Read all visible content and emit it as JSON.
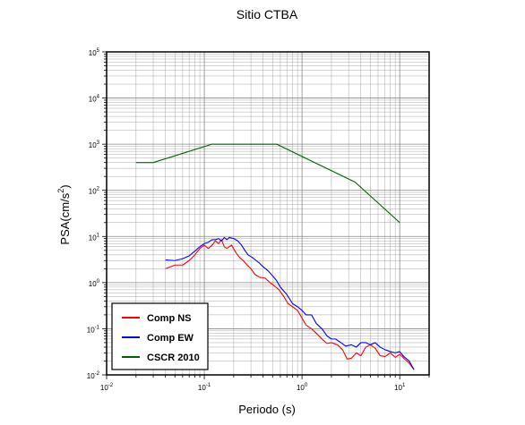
{
  "chart_data": {
    "type": "line",
    "title": "Sitio CTBA",
    "xlabel": "Periodo (s)",
    "ylabel_base": "PSA(cm/s",
    "ylabel_exp": "2",
    "ylabel_close": ")",
    "x_scale": "log",
    "y_scale": "log",
    "xlim": [
      0.01,
      20
    ],
    "ylim": [
      0.01,
      100000
    ],
    "grid": true,
    "legend_position": "bottom-left",
    "x_ticks": [
      {
        "base": "10",
        "exp": "-2",
        "value": 0.01
      },
      {
        "base": "10",
        "exp": "-1",
        "value": 0.1
      },
      {
        "base": "10",
        "exp": "0",
        "value": 1
      },
      {
        "base": "10",
        "exp": "1",
        "value": 10
      }
    ],
    "y_ticks": [
      {
        "base": "10",
        "exp": "-2",
        "value": 0.01
      },
      {
        "base": "10",
        "exp": "-1",
        "value": 0.1
      },
      {
        "base": "10",
        "exp": "0",
        "value": 1
      },
      {
        "base": "10",
        "exp": "1",
        "value": 10
      },
      {
        "base": "10",
        "exp": "2",
        "value": 100
      },
      {
        "base": "10",
        "exp": "3",
        "value": 1000
      },
      {
        "base": "10",
        "exp": "4",
        "value": 10000
      },
      {
        "base": "10",
        "exp": "5",
        "value": 100000
      }
    ],
    "series": [
      {
        "name": "Comp NS",
        "color": "#ff0000",
        "points": [
          [
            0.04,
            2.0
          ],
          [
            0.05,
            2.4
          ],
          [
            0.06,
            2.4
          ],
          [
            0.07,
            3.0
          ],
          [
            0.08,
            4.0
          ],
          [
            0.09,
            5.5
          ],
          [
            0.1,
            6.5
          ],
          [
            0.11,
            5.5
          ],
          [
            0.12,
            6.5
          ],
          [
            0.13,
            8.0
          ],
          [
            0.14,
            7.0
          ],
          [
            0.15,
            8.5
          ],
          [
            0.16,
            6.0
          ],
          [
            0.17,
            5.5
          ],
          [
            0.19,
            6.5
          ],
          [
            0.21,
            4.5
          ],
          [
            0.23,
            3.5
          ],
          [
            0.25,
            3.0
          ],
          [
            0.27,
            2.5
          ],
          [
            0.3,
            2.0
          ],
          [
            0.33,
            1.5
          ],
          [
            0.37,
            1.3
          ],
          [
            0.42,
            1.25
          ],
          [
            0.47,
            1.0
          ],
          [
            0.52,
            0.85
          ],
          [
            0.58,
            0.7
          ],
          [
            0.65,
            0.5
          ],
          [
            0.72,
            0.35
          ],
          [
            0.8,
            0.3
          ],
          [
            0.9,
            0.25
          ],
          [
            1.0,
            0.17
          ],
          [
            1.1,
            0.12
          ],
          [
            1.25,
            0.1
          ],
          [
            1.4,
            0.08
          ],
          [
            1.6,
            0.06
          ],
          [
            1.8,
            0.048
          ],
          [
            2.0,
            0.05
          ],
          [
            2.3,
            0.045
          ],
          [
            2.6,
            0.035
          ],
          [
            2.9,
            0.022
          ],
          [
            3.2,
            0.023
          ],
          [
            3.6,
            0.03
          ],
          [
            4.0,
            0.026
          ],
          [
            4.5,
            0.04
          ],
          [
            5.0,
            0.045
          ],
          [
            5.6,
            0.038
          ],
          [
            6.3,
            0.026
          ],
          [
            7.1,
            0.025
          ],
          [
            8.0,
            0.03
          ],
          [
            9.0,
            0.024
          ],
          [
            10.0,
            0.028
          ],
          [
            11.0,
            0.023
          ],
          [
            12.5,
            0.018
          ],
          [
            14.0,
            0.013
          ]
        ]
      },
      {
        "name": "Comp EW",
        "color": "#0000ff",
        "points": [
          [
            0.04,
            3.1
          ],
          [
            0.05,
            3.0
          ],
          [
            0.06,
            3.3
          ],
          [
            0.07,
            3.8
          ],
          [
            0.08,
            4.8
          ],
          [
            0.09,
            6.0
          ],
          [
            0.1,
            7.0
          ],
          [
            0.11,
            7.5
          ],
          [
            0.12,
            8.5
          ],
          [
            0.13,
            8.5
          ],
          [
            0.14,
            9.0
          ],
          [
            0.15,
            8.0
          ],
          [
            0.16,
            9.5
          ],
          [
            0.17,
            8.5
          ],
          [
            0.18,
            9.5
          ],
          [
            0.2,
            9.0
          ],
          [
            0.22,
            8.0
          ],
          [
            0.24,
            6.5
          ],
          [
            0.26,
            5.0
          ],
          [
            0.28,
            4.0
          ],
          [
            0.31,
            3.5
          ],
          [
            0.34,
            3.0
          ],
          [
            0.37,
            2.6
          ],
          [
            0.4,
            2.2
          ],
          [
            0.45,
            1.8
          ],
          [
            0.5,
            1.4
          ],
          [
            0.55,
            1.1
          ],
          [
            0.6,
            0.8
          ],
          [
            0.7,
            0.55
          ],
          [
            0.8,
            0.35
          ],
          [
            0.9,
            0.3
          ],
          [
            1.0,
            0.25
          ],
          [
            1.1,
            0.2
          ],
          [
            1.25,
            0.2
          ],
          [
            1.4,
            0.13
          ],
          [
            1.6,
            0.1
          ],
          [
            1.8,
            0.07
          ],
          [
            2.0,
            0.06
          ],
          [
            2.2,
            0.06
          ],
          [
            2.5,
            0.05
          ],
          [
            2.8,
            0.042
          ],
          [
            3.2,
            0.045
          ],
          [
            3.6,
            0.04
          ],
          [
            4.0,
            0.05
          ],
          [
            4.5,
            0.05
          ],
          [
            5.0,
            0.045
          ],
          [
            5.6,
            0.05
          ],
          [
            6.3,
            0.04
          ],
          [
            7.1,
            0.035
          ],
          [
            8.0,
            0.032
          ],
          [
            9.0,
            0.03
          ],
          [
            10.0,
            0.032
          ],
          [
            11.0,
            0.025
          ],
          [
            12.5,
            0.02
          ],
          [
            14.0,
            0.013
          ]
        ]
      },
      {
        "name": "CSCR 2010",
        "color": "#006400",
        "points": [
          [
            0.02,
            400
          ],
          [
            0.03,
            400
          ],
          [
            0.12,
            1000
          ],
          [
            0.55,
            1000
          ],
          [
            3.5,
            150
          ],
          [
            10.0,
            20
          ]
        ]
      }
    ]
  }
}
